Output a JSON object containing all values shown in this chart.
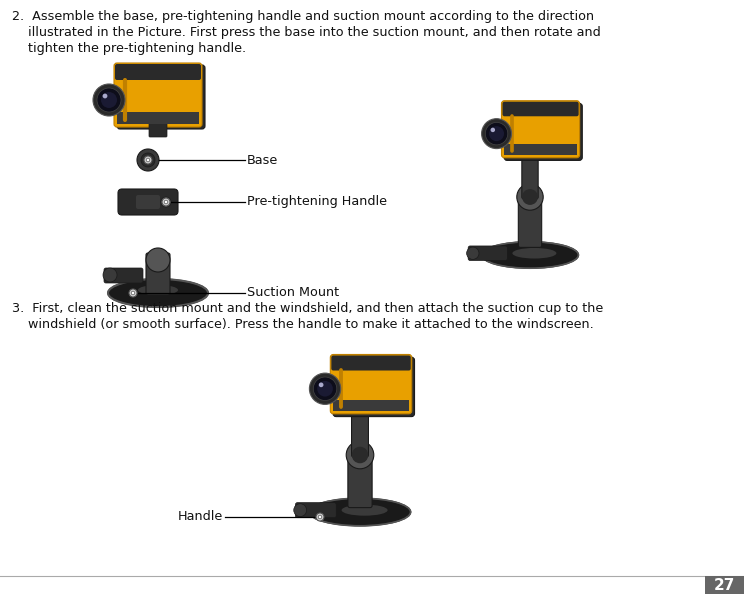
{
  "background_color": "#ffffff",
  "page_number": "27",
  "page_number_bg": "#666666",
  "page_number_color": "#ffffff",
  "text_color": "#111111",
  "label_color": "#111111",
  "line_color": "#111111",
  "step2_line1": "2.  Assemble the base, pre-tightening handle and suction mount according to the direction",
  "step2_line2": "    illustrated in the Picture. First press the base into the suction mount, and then rotate and",
  "step2_line3": "    tighten the pre-tightening handle.",
  "step3_line1": "3.  First, clean the suction mount and the windshield, and then attach the suction cup to the",
  "step3_line2": "    windshield (or smooth surface). Press the handle to make it attached to the windscreen.",
  "label_base": "Base",
  "label_pretightening": "Pre-tightening Handle",
  "label_suction": "Suction Mount",
  "label_handle": "Handle",
  "font_size_text": 9.2,
  "font_size_label": 9.2,
  "font_size_page": 11,
  "cam_yellow": "#E8A000",
  "cam_yellow_dark": "#C08000",
  "cam_black": "#1a1a1a",
  "cam_dark": "#2a2a2a",
  "cam_mid": "#3a3a3a",
  "cam_gray": "#555555",
  "cam_lens_dark": "#0d0d1a",
  "cam_lens_mid": "#1a1a33",
  "cam_lens_ring": "#444444",
  "cam_yellow_stripe": "#333300",
  "line_label_color": "#000000",
  "dot_fill": "#cccccc",
  "dot_edge": "#555555"
}
